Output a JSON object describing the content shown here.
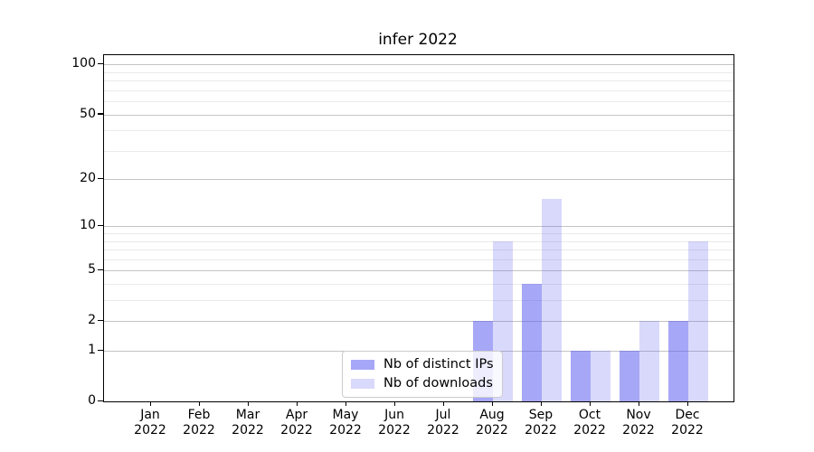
{
  "title": "infer 2022",
  "chart_data": {
    "type": "bar",
    "title": "infer 2022",
    "scale": "log1p",
    "grid": "horizontal",
    "legend_position": "lower center",
    "categories": [
      "Jan",
      "Feb",
      "Mar",
      "Apr",
      "May",
      "Jun",
      "Jul",
      "Aug",
      "Sep",
      "Oct",
      "Nov",
      "Dec"
    ],
    "year": "2022",
    "series": [
      {
        "name": "Nb of distinct IPs",
        "color": "rgba(80,80,240,0.5)",
        "values": [
          0,
          0,
          0,
          0,
          0,
          0,
          0,
          2,
          4,
          1,
          1,
          2
        ]
      },
      {
        "name": "Nb of downloads",
        "color": "rgba(80,80,240,0.22)",
        "values": [
          0,
          0,
          0,
          0,
          0,
          0,
          0,
          8,
          15,
          1,
          2,
          8
        ]
      }
    ],
    "y_major_ticks": [
      0,
      1,
      2,
      5,
      10,
      20,
      50,
      100
    ],
    "y_minor_gridlines": [
      3,
      4,
      6,
      7,
      8,
      9,
      30,
      40,
      60,
      70,
      80,
      90
    ],
    "ylim": [
      0,
      114
    ]
  },
  "colors": {
    "bar_distinct_ips": "rgba(80,80,240,0.5)",
    "bar_downloads": "rgba(80,80,240,0.22)",
    "grid_major": "#c4c4c4",
    "grid_minor": "#eaeaea",
    "spine": "#000000",
    "background": "#ffffff"
  }
}
